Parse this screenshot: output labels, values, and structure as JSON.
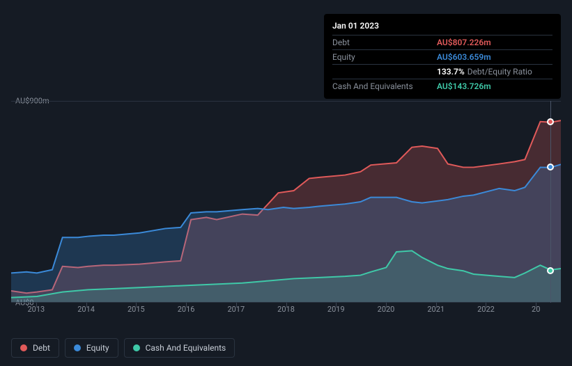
{
  "tooltip": {
    "date": "Jan 01 2023",
    "rows": [
      {
        "label": "Debt",
        "value": "AU$807.226m",
        "color": "#e15a5a"
      },
      {
        "label": "Equity",
        "value": "AU$603.659m",
        "color": "#3b8ad9"
      },
      {
        "label": "",
        "value": "133.7%",
        "suffix": "Debt/Equity Ratio",
        "color": "#ffffff"
      },
      {
        "label": "Cash And Equivalents",
        "value": "AU$143.726m",
        "color": "#3fc9a8"
      }
    ]
  },
  "chart": {
    "type": "area",
    "background_color": "#151b24",
    "grid_color": "#2a3340",
    "text_color": "#8a919c",
    "label_fontsize": 11,
    "ylim": [
      0,
      900
    ],
    "y_ticks": [
      {
        "v": 0,
        "label": "AU$0"
      },
      {
        "v": 900,
        "label": "AU$900m"
      }
    ],
    "x_start": 2012.5,
    "x_end": 2023.2,
    "x_ticks": [
      "2013",
      "2014",
      "2015",
      "2016",
      "2017",
      "2018",
      "2019",
      "2020",
      "2021",
      "2022",
      "20"
    ],
    "marker_x": 2023.0,
    "series": [
      {
        "name": "Debt",
        "color": "#e15a5a",
        "fill_opacity": 0.25,
        "line_width": 2,
        "points": [
          [
            2012.5,
            50
          ],
          [
            2012.8,
            40
          ],
          [
            2013.0,
            45
          ],
          [
            2013.3,
            55
          ],
          [
            2013.5,
            160
          ],
          [
            2013.8,
            155
          ],
          [
            2014.0,
            160
          ],
          [
            2014.3,
            165
          ],
          [
            2014.5,
            165
          ],
          [
            2015.0,
            170
          ],
          [
            2015.5,
            180
          ],
          [
            2015.8,
            185
          ],
          [
            2016.0,
            370
          ],
          [
            2016.3,
            380
          ],
          [
            2016.5,
            370
          ],
          [
            2017.0,
            395
          ],
          [
            2017.3,
            390
          ],
          [
            2017.5,
            440
          ],
          [
            2017.7,
            490
          ],
          [
            2018.0,
            500
          ],
          [
            2018.3,
            555
          ],
          [
            2018.5,
            560
          ],
          [
            2019.0,
            570
          ],
          [
            2019.3,
            585
          ],
          [
            2019.5,
            615
          ],
          [
            2020.0,
            625
          ],
          [
            2020.3,
            695
          ],
          [
            2020.5,
            700
          ],
          [
            2020.8,
            690
          ],
          [
            2021.0,
            620
          ],
          [
            2021.3,
            605
          ],
          [
            2021.5,
            605
          ],
          [
            2022.0,
            620
          ],
          [
            2022.3,
            630
          ],
          [
            2022.5,
            640
          ],
          [
            2022.8,
            810
          ],
          [
            2023.0,
            807
          ],
          [
            2023.2,
            815
          ]
        ]
      },
      {
        "name": "Equity",
        "color": "#3b8ad9",
        "fill_opacity": 0.25,
        "line_width": 2,
        "points": [
          [
            2012.5,
            130
          ],
          [
            2012.8,
            135
          ],
          [
            2013.0,
            130
          ],
          [
            2013.3,
            145
          ],
          [
            2013.5,
            290
          ],
          [
            2013.8,
            290
          ],
          [
            2014.0,
            295
          ],
          [
            2014.3,
            300
          ],
          [
            2014.5,
            300
          ],
          [
            2015.0,
            310
          ],
          [
            2015.5,
            330
          ],
          [
            2015.8,
            335
          ],
          [
            2016.0,
            400
          ],
          [
            2016.3,
            405
          ],
          [
            2016.5,
            405
          ],
          [
            2017.0,
            415
          ],
          [
            2017.3,
            420
          ],
          [
            2017.5,
            415
          ],
          [
            2017.8,
            425
          ],
          [
            2018.0,
            420
          ],
          [
            2018.3,
            425
          ],
          [
            2018.5,
            430
          ],
          [
            2019.0,
            440
          ],
          [
            2019.3,
            450
          ],
          [
            2019.5,
            470
          ],
          [
            2020.0,
            470
          ],
          [
            2020.3,
            450
          ],
          [
            2020.5,
            445
          ],
          [
            2021.0,
            460
          ],
          [
            2021.3,
            475
          ],
          [
            2021.5,
            480
          ],
          [
            2022.0,
            510
          ],
          [
            2022.3,
            500
          ],
          [
            2022.5,
            515
          ],
          [
            2022.8,
            605
          ],
          [
            2023.0,
            604
          ],
          [
            2023.2,
            618
          ]
        ]
      },
      {
        "name": "Cash And Equivalents",
        "color": "#3fc9a8",
        "fill_opacity": 0.2,
        "line_width": 2,
        "points": [
          [
            2012.5,
            20
          ],
          [
            2013.0,
            25
          ],
          [
            2013.5,
            45
          ],
          [
            2014.0,
            55
          ],
          [
            2014.5,
            60
          ],
          [
            2015.0,
            65
          ],
          [
            2015.5,
            70
          ],
          [
            2016.0,
            75
          ],
          [
            2016.5,
            80
          ],
          [
            2017.0,
            85
          ],
          [
            2017.5,
            95
          ],
          [
            2018.0,
            105
          ],
          [
            2018.5,
            110
          ],
          [
            2019.0,
            115
          ],
          [
            2019.3,
            120
          ],
          [
            2019.5,
            135
          ],
          [
            2019.8,
            155
          ],
          [
            2020.0,
            225
          ],
          [
            2020.3,
            230
          ],
          [
            2020.5,
            200
          ],
          [
            2020.8,
            165
          ],
          [
            2021.0,
            150
          ],
          [
            2021.3,
            140
          ],
          [
            2021.5,
            125
          ],
          [
            2022.0,
            115
          ],
          [
            2022.3,
            110
          ],
          [
            2022.5,
            130
          ],
          [
            2022.8,
            165
          ],
          [
            2023.0,
            144
          ],
          [
            2023.2,
            150
          ]
        ]
      }
    ],
    "legend": [
      {
        "label": "Debt",
        "color": "#e15a5a"
      },
      {
        "label": "Equity",
        "color": "#3b8ad9"
      },
      {
        "label": "Cash And Equivalents",
        "color": "#3fc9a8"
      }
    ]
  }
}
